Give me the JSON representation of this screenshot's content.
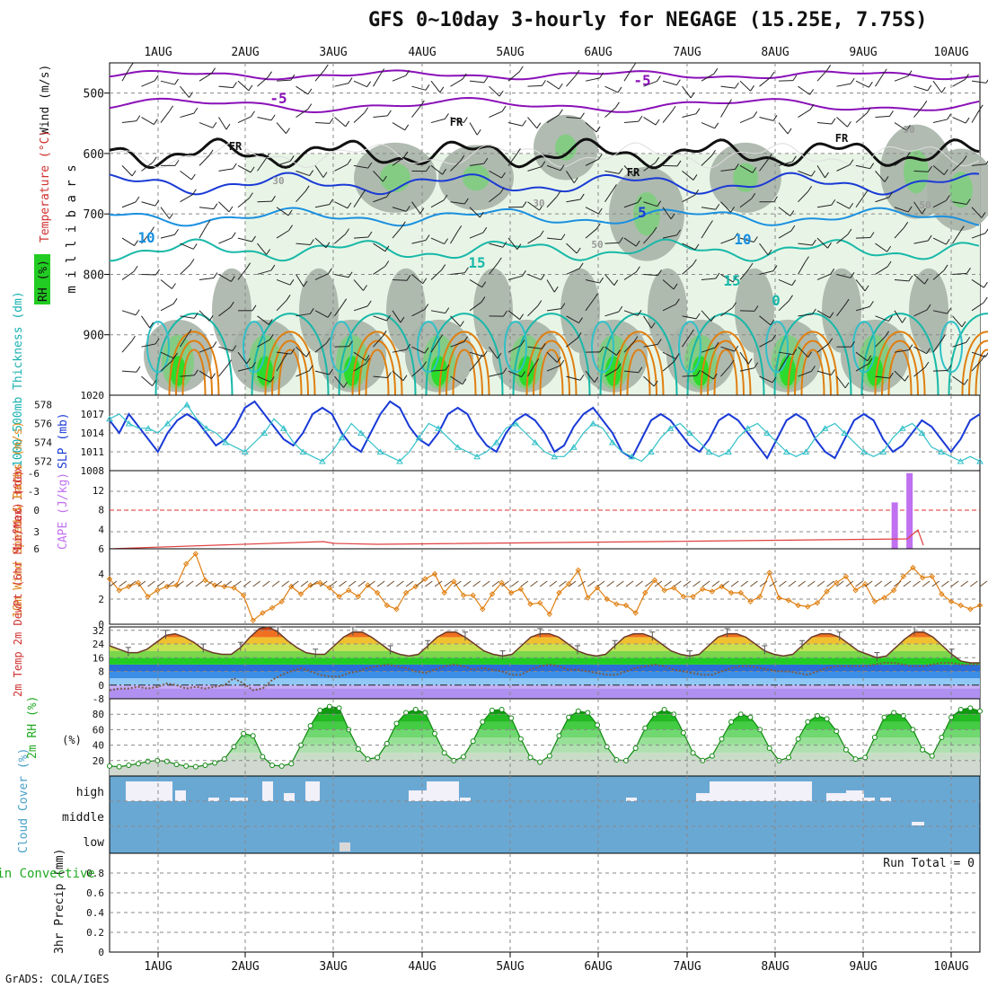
{
  "title": "GFS 0~10day 3-hourly for NEGAGE (15.25E, 7.75S)",
  "footer": "GrADS: COLA/IGES",
  "date_labels": [
    "1AUG",
    "2AUG",
    "3AUG",
    "4AUG",
    "5AUG",
    "6AUG",
    "7AUG",
    "8AUG",
    "9AUG",
    "10AUG"
  ],
  "colors": {
    "rh_light": "#e8f5e6",
    "rh_grey": "#a8b4a8",
    "rh_mid": "#7fce7f",
    "rh_green": "#22dd22",
    "purple": "#8a10b8",
    "blue_dark": "#1a3ad6",
    "blue_mid": "#1a90e0",
    "teal": "#18b8a8",
    "orange": "#e07f10",
    "brown": "#6b4a2a",
    "cyan_line": "#30c0c8",
    "cape": "#c070f0",
    "li_line": "#e04040",
    "cloud": "#6aa8d4"
  },
  "chart_data": [
    {
      "id": "upper-air",
      "type": "contour",
      "ylabel": "m i l l i b a r s",
      "side_labels": [
        "Wind (m/s)",
        "Temperature (°C)",
        "RH (%)"
      ],
      "y_ticks": [
        500,
        600,
        700,
        800,
        900
      ],
      "ylim": [
        1000,
        450
      ],
      "contour_labels": [
        "-5",
        "-5",
        "FR",
        "FR",
        "FR",
        "FR",
        "5",
        "10",
        "10",
        "15",
        "15",
        "0",
        "30",
        "30",
        "50",
        "50",
        "30"
      ]
    },
    {
      "id": "slp-thickness",
      "type": "line",
      "ylabel_left": "1000-500mb Thickness (dm)",
      "ylabel_right": "SLP (mb)",
      "left_ticks": [
        572,
        574,
        576,
        578
      ],
      "right_ticks": [
        1008,
        1011,
        1014,
        1017,
        1020
      ],
      "slp": [
        1016,
        1014,
        1017,
        1015,
        1013,
        1011,
        1014,
        1016,
        1017,
        1016,
        1014,
        1012,
        1013,
        1015,
        1018,
        1019,
        1017,
        1015,
        1013,
        1012,
        1014,
        1017,
        1018,
        1017,
        1014,
        1012,
        1011,
        1014,
        1017,
        1019,
        1018,
        1015,
        1013,
        1012,
        1014,
        1017,
        1018,
        1017,
        1014,
        1012,
        1011,
        1014,
        1016,
        1017,
        1016,
        1014,
        1011,
        1012,
        1015,
        1017,
        1018,
        1016,
        1014,
        1011,
        1010,
        1013,
        1016,
        1017,
        1016,
        1014,
        1012,
        1011,
        1013,
        1016,
        1017,
        1016,
        1014,
        1012,
        1010,
        1013,
        1016,
        1017,
        1016,
        1013,
        1011,
        1010,
        1013,
        1016,
        1017,
        1016,
        1013,
        1011,
        1012,
        1014,
        1016,
        1015,
        1013,
        1011,
        1013,
        1016,
        1017
      ],
      "thickness": [
        576.5,
        577,
        576,
        575.5,
        575.5,
        575,
        576,
        577,
        578,
        576.5,
        575.5,
        575,
        574,
        573.5,
        573,
        574,
        575,
        576.5,
        575.5,
        574,
        573,
        572.5,
        572,
        573,
        574.5,
        576,
        575,
        574,
        573,
        572.5,
        572,
        573,
        574.5,
        576,
        575.5,
        574.5,
        573.5,
        573,
        572.5,
        573,
        574,
        575.5,
        576,
        575,
        574,
        573,
        572.5,
        572.5,
        573.5,
        575,
        576,
        575.5,
        574,
        573,
        572.5,
        572,
        573,
        574.5,
        575.5,
        576,
        575,
        574,
        573,
        572.5,
        573,
        574.5,
        575.5,
        576,
        575,
        574,
        573,
        572.5,
        573,
        574.5,
        575.5,
        576,
        575,
        574,
        573,
        572.5,
        573,
        574.5,
        575.5,
        576,
        575,
        573.5,
        573,
        572.5,
        572,
        572.5,
        572
      ]
    },
    {
      "id": "lifted-index-cape",
      "type": "bar",
      "ylabel_left": "Lifted Index",
      "ylabel_right": "CAPE (J/kg)",
      "left_ticks": [
        "-6",
        "-3",
        "0",
        "3",
        "6"
      ],
      "right_ticks": [
        4,
        8,
        12
      ],
      "cape_bars": [
        {
          "day": 9.45,
          "value": 9.5
        },
        {
          "day": 9.62,
          "value": 15.5
        }
      ]
    },
    {
      "id": "wind10m",
      "type": "line",
      "ylabel": "10m Wind Speed & Barbs (m/s)",
      "y_ticks": [
        0,
        2,
        4,
        6
      ],
      "ylim": [
        0,
        6
      ],
      "values": [
        3.6,
        2.7,
        3.0,
        3.3,
        2.2,
        2.7,
        3.0,
        3.1,
        4.8,
        5.6,
        3.5,
        3.1,
        3.0,
        2.9,
        2.3,
        0.3,
        0.9,
        1.3,
        1.8,
        3.0,
        2.4,
        3.1,
        3.3,
        2.9,
        2.2,
        2.7,
        2.2,
        3.1,
        2.5,
        1.5,
        1.2,
        2.5,
        3.0,
        3.6,
        4.0,
        2.5,
        3.4,
        2.3,
        2.3,
        1.2,
        2.4,
        3.3,
        2.5,
        2.8,
        1.6,
        1.7,
        0.8,
        2.5,
        3.2,
        4.3,
        2.1,
        2.9,
        2.0,
        1.6,
        1.5,
        0.9,
        2.5,
        3.5,
        2.7,
        2.9,
        2.2,
        2.2,
        2.8,
        2.6,
        3.0,
        2.5,
        2.5,
        1.8,
        2.2,
        4.1,
        2.1,
        1.9,
        1.5,
        1.4,
        1.7,
        2.6,
        3.3,
        3.8,
        2.7,
        3.2,
        1.8,
        2.1,
        2.7,
        3.8,
        4.5,
        3.7,
        3.8,
        2.4,
        1.8,
        1.5,
        1.2,
        1.5
      ]
    },
    {
      "id": "temp2m",
      "type": "area",
      "ylabel": "2m Temp 2m DewPt (6hr Min/Max) (°C)",
      "y_ticks": [
        -8,
        0,
        8,
        16,
        24,
        32
      ],
      "ylim": [
        -8,
        34
      ],
      "temp": [
        23,
        21,
        19,
        19,
        21,
        25,
        29,
        30,
        28,
        25,
        21,
        19,
        18,
        18,
        22,
        28,
        33,
        34,
        31,
        26,
        22,
        19,
        18,
        18,
        23,
        28,
        31,
        31,
        28,
        24,
        20,
        18,
        17,
        18,
        23,
        28,
        31,
        31,
        28,
        24,
        20,
        18,
        17,
        18,
        23,
        28,
        30,
        30,
        28,
        24,
        20,
        18,
        17,
        18,
        23,
        28,
        30,
        30,
        28,
        24,
        20,
        18,
        17,
        18,
        23,
        28,
        30,
        30,
        28,
        24,
        20,
        18,
        17,
        18,
        23,
        28,
        30,
        30,
        28,
        24,
        20,
        18,
        16,
        17,
        22,
        27,
        31,
        31,
        28,
        23,
        18,
        14,
        13,
        13
      ],
      "dewpoint": [
        -3,
        -2,
        -2,
        -1,
        -2,
        -1,
        1,
        0,
        -2,
        -1,
        -2,
        -1,
        0,
        4,
        1,
        -3,
        -2,
        3,
        6,
        8,
        10,
        8,
        6,
        5,
        5,
        7,
        8,
        10,
        11,
        12,
        11,
        10,
        8,
        7,
        9,
        11,
        12,
        11,
        9,
        10,
        9,
        8,
        6,
        6,
        9,
        11,
        12,
        11,
        9,
        9,
        8,
        7,
        6,
        6,
        8,
        10,
        11,
        12,
        11,
        9,
        8,
        7,
        6,
        6,
        8,
        10,
        11,
        11,
        10,
        9,
        8,
        8,
        7,
        6,
        8,
        10,
        11,
        11,
        11,
        11,
        12,
        13,
        13,
        12,
        11,
        11,
        12,
        13,
        13,
        12,
        12,
        12
      ]
    },
    {
      "id": "rh2m",
      "type": "area",
      "ylabel": "2m RH (%)",
      "y_ticks": [
        20,
        40,
        60,
        80
      ],
      "ylim": [
        0,
        100
      ],
      "values": [
        13,
        12,
        14,
        16,
        19,
        20,
        19,
        15,
        13,
        12,
        14,
        17,
        22,
        38,
        55,
        52,
        25,
        14,
        13,
        16,
        40,
        65,
        85,
        90,
        88,
        60,
        35,
        22,
        24,
        42,
        68,
        82,
        86,
        82,
        55,
        30,
        20,
        25,
        45,
        70,
        85,
        86,
        75,
        48,
        24,
        18,
        26,
        52,
        76,
        84,
        82,
        66,
        38,
        21,
        20,
        36,
        62,
        80,
        86,
        80,
        56,
        30,
        20,
        26,
        48,
        70,
        80,
        76,
        60,
        36,
        20,
        24,
        48,
        70,
        78,
        74,
        58,
        34,
        22,
        24,
        50,
        76,
        82,
        78,
        60,
        34,
        26,
        50,
        76,
        86,
        88,
        84
      ]
    },
    {
      "id": "cloud-cover",
      "type": "heatmap",
      "ylabel": "Cloud Cover (%)",
      "levels": [
        "high",
        "middle",
        "low"
      ]
    },
    {
      "id": "precip",
      "type": "bar",
      "ylabel_left": "Total / Rain Convective",
      "ylabel": "3hr Precip (mm)",
      "y_ticks": [
        0,
        0.2,
        0.4,
        0.6,
        0.8
      ],
      "ylim": [
        0,
        1
      ],
      "annotation": "Run Total = 0"
    }
  ]
}
